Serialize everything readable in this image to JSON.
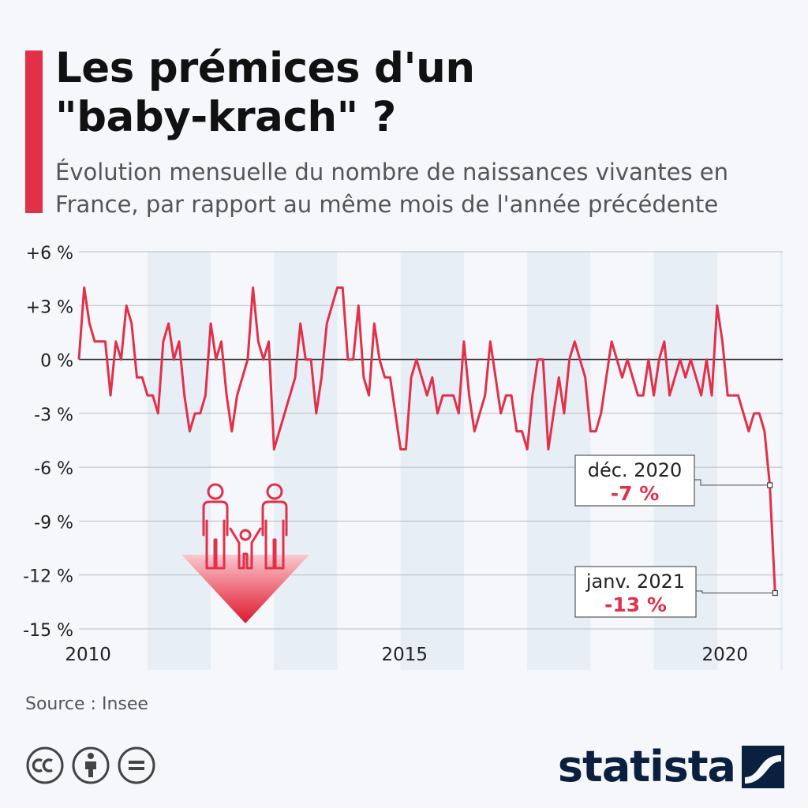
{
  "title_lines": [
    "Les prémices d'un",
    "\"baby-krach\" ?"
  ],
  "subtitle_lines": [
    "Évolution mensuelle du nombre de naissances vivantes en",
    "France, par rapport au même mois de l'année précédente"
  ],
  "source": "Source : Insee",
  "brand": "statista",
  "colors": {
    "accent": "#e2304a",
    "line": "#e2304a",
    "navy": "#0b1f3f",
    "band": "#e7eef6"
  },
  "icons": [
    "creative-commons-icon",
    "attribution-person-icon",
    "no-derivatives-icon",
    "statista-logo-icon",
    "family-decline-icon"
  ],
  "chart_data": {
    "type": "line",
    "ylim": [
      -15,
      6
    ],
    "yticks": [
      6,
      3,
      0,
      -3,
      -6,
      -9,
      -12,
      -15
    ],
    "ytick_labels": [
      "+6 %",
      "+3 %",
      "0 %",
      "-3 %",
      "-6 %",
      "-9 %",
      "-12 %",
      "-15 %"
    ],
    "xtick_labels": [
      {
        "label": "2010",
        "year": 2010
      },
      {
        "label": "2015",
        "year": 2015
      },
      {
        "label": "2020",
        "year": 2020
      }
    ],
    "x_start": "2009-12",
    "x_end": "2021-01",
    "shaded_years": [
      2011,
      2013,
      2015,
      2017,
      2019,
      2021
    ],
    "series": [
      {
        "values": [
          0,
          4,
          2,
          1,
          1,
          1,
          -2,
          1,
          0,
          3,
          2,
          -1,
          -1,
          -2,
          -2,
          -3,
          1,
          2,
          0,
          1,
          -2,
          -4,
          -3,
          -3,
          -2,
          2,
          0,
          1,
          -2,
          -4,
          -2,
          -1,
          0,
          4,
          1,
          0,
          1,
          -5,
          -4,
          -3,
          -2,
          -1,
          2,
          0,
          0,
          -3,
          -1,
          2,
          3,
          4,
          4,
          0,
          0,
          3,
          -1,
          -2,
          2,
          0,
          -1,
          -1,
          -3,
          -5,
          -5,
          -1,
          0,
          -1,
          -2,
          -1,
          -3,
          -2,
          -2,
          -2,
          -3,
          1,
          -2,
          -4,
          -3,
          -2,
          1,
          -1,
          -3,
          -2,
          -2,
          -4,
          -4,
          -5,
          -2,
          0,
          0,
          -5,
          -3,
          -1,
          -3,
          0,
          1,
          0,
          -1,
          -4,
          -4,
          -3,
          -1,
          1,
          0,
          -1,
          0,
          -1,
          -2,
          -2,
          0,
          -2,
          0,
          1,
          -2,
          -1,
          0,
          -1,
          0,
          -1,
          -2,
          0,
          -2,
          3,
          1,
          -2,
          -2,
          -2,
          -3,
          -4,
          -3,
          -3,
          -4,
          -7,
          -13
        ]
      }
    ],
    "annotations": [
      {
        "date": "déc. 2020",
        "value": -7,
        "value_label": "-7 %"
      },
      {
        "date": "janv. 2021",
        "value": -13,
        "value_label": "-13 %"
      }
    ]
  }
}
